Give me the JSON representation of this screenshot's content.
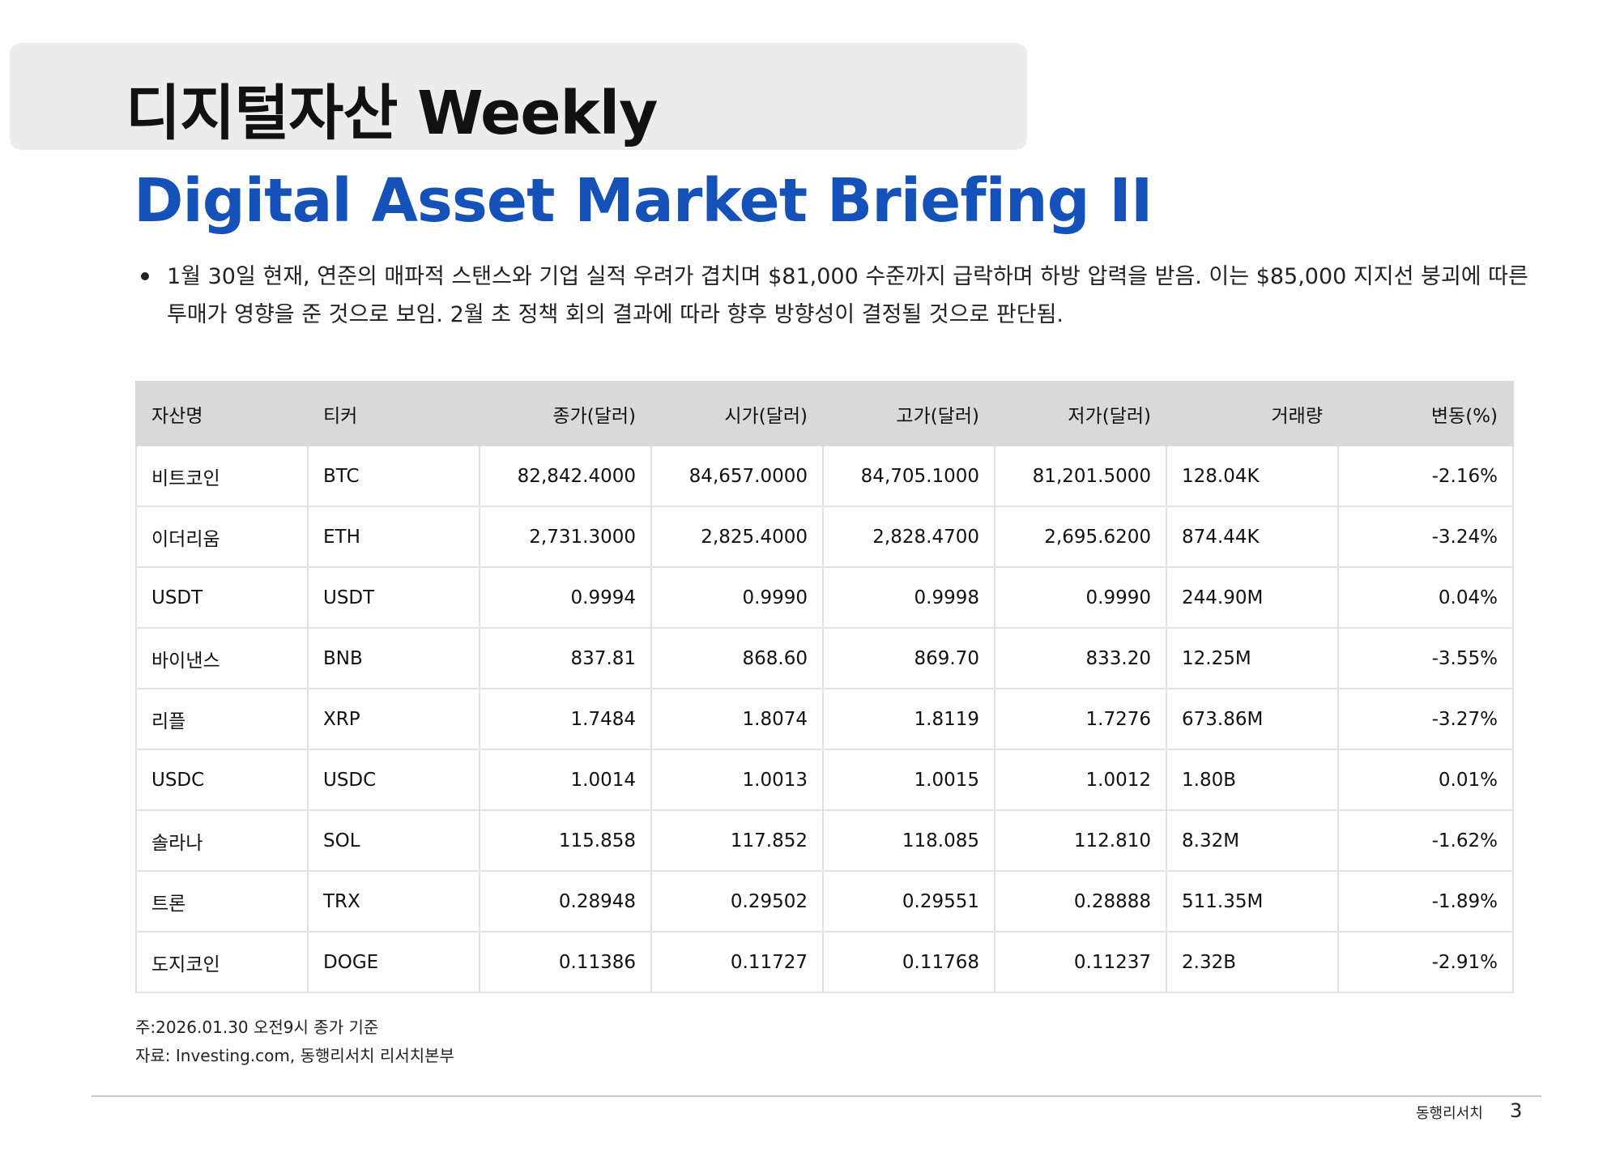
{
  "header": {
    "title": "디지털자산 Weekly",
    "subtitle": "Digital Asset Market Briefing II"
  },
  "summary": {
    "bullet": "1월 30일 현재, 연준의 매파적 스탠스와 기업 실적 우려가 겹치며 $81,000 수준까지 급락하며 하방 압력을 받음. 이는 $85,000 지지선 붕괴에 따른 투매가 영향을 준 것으로 보임. 2월 초 정책 회의 결과에 따라 향후 방향성이 결정될 것으로 판단됨."
  },
  "table": {
    "headers": [
      "자산명",
      "티커",
      "종가(달러)",
      "시가(달러)",
      "고가(달러)",
      "저가(달러)",
      "거래량",
      "변동(%)"
    ],
    "rows": [
      [
        "비트코인",
        "BTC",
        "82,842.4000",
        "84,657.0000",
        "84,705.1000",
        "81,201.5000",
        "128.04K",
        "-2.16%"
      ],
      [
        "이더리움",
        "ETH",
        "2,731.3000",
        "2,825.4000",
        "2,828.4700",
        "2,695.6200",
        "874.44K",
        "-3.24%"
      ],
      [
        "USDT",
        "USDT",
        "0.9994",
        "0.9990",
        "0.9998",
        "0.9990",
        "244.90M",
        "0.04%"
      ],
      [
        "바이낸스",
        "BNB",
        "837.81",
        "868.60",
        "869.70",
        "833.20",
        "12.25M",
        "-3.55%"
      ],
      [
        "리플",
        "XRP",
        "1.7484",
        "1.8074",
        "1.8119",
        "1.7276",
        "673.86M",
        "-3.27%"
      ],
      [
        "USDC",
        "USDC",
        "1.0014",
        "1.0013",
        "1.0015",
        "1.0012",
        "1.80B",
        "0.01%"
      ],
      [
        "솔라나",
        "SOL",
        "115.858",
        "117.852",
        "118.085",
        "112.810",
        "8.32M",
        "-1.62%"
      ],
      [
        "트론",
        "TRX",
        "0.28948",
        "0.29502",
        "0.29551",
        "0.28888",
        "511.35M",
        "-1.89%"
      ],
      [
        "도지코인",
        "DOGE",
        "0.11386",
        "0.11727",
        "0.11768",
        "0.11237",
        "2.32B",
        "-2.91%"
      ]
    ]
  },
  "notes": {
    "note": "주:2026.01.30 오전9시 종가 기준",
    "source": "자료: Investing.com, 동행리서치 리서치본부"
  },
  "footer": {
    "brand": "동행리서치",
    "page": "3"
  },
  "colors": {
    "subtitle": "#1451b8",
    "title_box": "#ececec",
    "table_header": "#d9d9d9"
  }
}
